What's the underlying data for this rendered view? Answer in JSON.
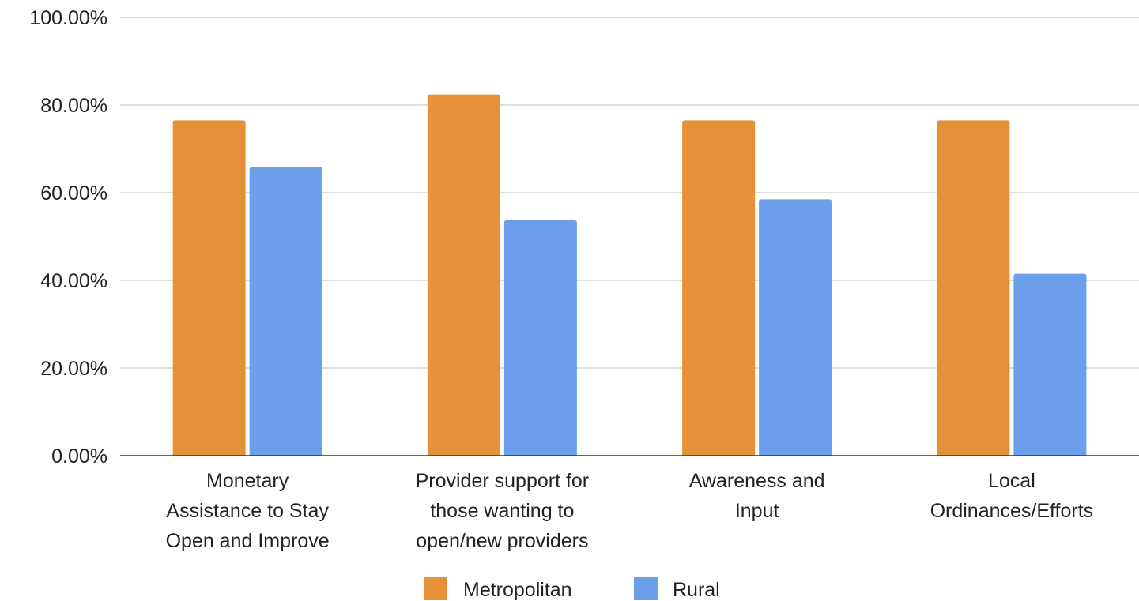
{
  "chart_data": {
    "type": "bar",
    "title": "",
    "xlabel": "",
    "ylabel": "",
    "categories": [
      [
        "Monetary",
        "Assistance to Stay",
        "Open and Improve"
      ],
      [
        "Provider support for",
        "those wanting to",
        "open/new providers"
      ],
      [
        "Awareness and",
        "Input"
      ],
      [
        "Local",
        "Ordinances/Efforts"
      ]
    ],
    "series": [
      {
        "name": "Metropolitan",
        "color": "#e69138",
        "values": [
          76.5,
          82.4,
          76.5,
          76.5
        ]
      },
      {
        "name": "Rural",
        "color": "#6d9eeb",
        "values": [
          65.8,
          53.7,
          58.5,
          41.5
        ]
      }
    ],
    "ylim": [
      0,
      100
    ],
    "yticks": [
      0,
      20,
      40,
      60,
      80,
      100
    ],
    "ytick_labels": [
      "0.00%",
      "20.00%",
      "40.00%",
      "60.00%",
      "80.00%",
      "100.00%"
    ],
    "grid": true,
    "legend_position": "bottom"
  }
}
